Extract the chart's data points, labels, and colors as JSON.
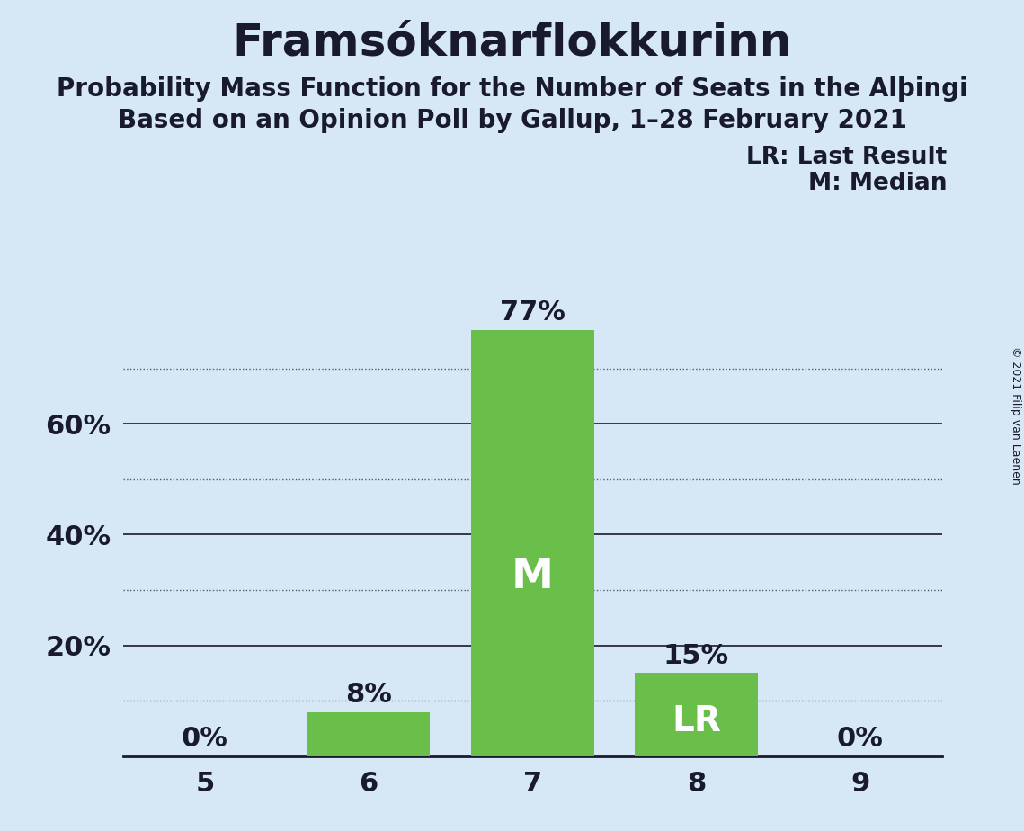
{
  "title": "Framsóknarflokkurinn",
  "subtitle1": "Probability Mass Function for the Number of Seats in the Alþingi",
  "subtitle2": "Based on an Opinion Poll by Gallup, 1–28 February 2021",
  "copyright": "© 2021 Filip van Laenen",
  "seats": [
    5,
    6,
    7,
    8,
    9
  ],
  "probabilities": [
    0.0,
    0.08,
    0.77,
    0.15,
    0.0
  ],
  "bar_color": "#6abf4b",
  "background_color": "#d6e8f5",
  "median_seat": 7,
  "lr_seat": 8,
  "legend_lr": "LR: Last Result",
  "legend_m": "M: Median",
  "solid_gridlines": [
    0.2,
    0.4,
    0.6
  ],
  "dotted_gridlines": [
    0.1,
    0.3,
    0.5,
    0.7
  ],
  "ytick_positions": [
    0.2,
    0.4,
    0.6
  ],
  "ytick_labels": [
    "20%",
    "40%",
    "60%"
  ],
  "ylim": [
    0,
    0.855
  ],
  "bar_width": 0.75,
  "title_fontsize": 36,
  "subtitle_fontsize": 20,
  "tick_fontsize": 22,
  "annotation_fontsize": 22,
  "legend_fontsize": 19,
  "inside_label_fontsize": 34,
  "lr_label_fontsize": 28,
  "copyright_fontsize": 9
}
